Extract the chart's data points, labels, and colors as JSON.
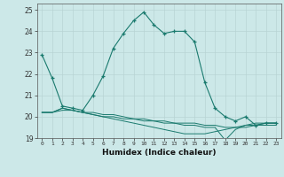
{
  "xlabel": "Humidex (Indice chaleur)",
  "background_color": "#cce8e8",
  "line_color": "#1a7a6e",
  "grid_color": "#b8d4d4",
  "x_values": [
    0,
    1,
    2,
    3,
    4,
    5,
    6,
    7,
    8,
    9,
    10,
    11,
    12,
    13,
    14,
    15,
    16,
    17,
    18,
    19,
    20,
    21,
    22,
    23
  ],
  "series1": [
    22.9,
    21.8,
    20.5,
    20.4,
    20.3,
    21.0,
    21.9,
    23.2,
    23.9,
    24.5,
    24.9,
    24.3,
    23.9,
    24.0,
    24.0,
    23.5,
    21.6,
    20.4,
    20.0,
    19.8,
    20.0,
    19.6,
    19.7,
    19.7
  ],
  "series2": [
    20.2,
    20.2,
    20.4,
    20.3,
    20.2,
    20.1,
    20.0,
    19.9,
    19.8,
    19.7,
    19.6,
    19.5,
    19.4,
    19.3,
    19.2,
    19.2,
    19.2,
    19.3,
    19.4,
    19.5,
    19.6,
    19.7,
    19.7,
    19.7
  ],
  "series3": [
    20.2,
    20.2,
    20.3,
    20.3,
    20.2,
    20.2,
    20.1,
    20.1,
    20.0,
    19.9,
    19.9,
    19.8,
    19.8,
    19.7,
    19.7,
    19.7,
    19.6,
    19.6,
    19.5,
    19.5,
    19.5,
    19.6,
    19.6,
    19.6
  ],
  "series4": [
    20.2,
    20.2,
    20.4,
    20.3,
    20.2,
    20.1,
    20.0,
    20.0,
    19.9,
    19.9,
    19.8,
    19.8,
    19.7,
    19.7,
    19.6,
    19.6,
    19.5,
    19.5,
    18.9,
    19.4,
    19.6,
    19.6,
    19.7,
    19.7
  ],
  "ylim": [
    19.0,
    25.3
  ],
  "yticks": [
    19,
    20,
    21,
    22,
    23,
    24,
    25
  ],
  "xticks": [
    0,
    1,
    2,
    3,
    4,
    5,
    6,
    7,
    8,
    9,
    10,
    11,
    12,
    13,
    14,
    15,
    16,
    17,
    18,
    19,
    20,
    21,
    22,
    23
  ]
}
